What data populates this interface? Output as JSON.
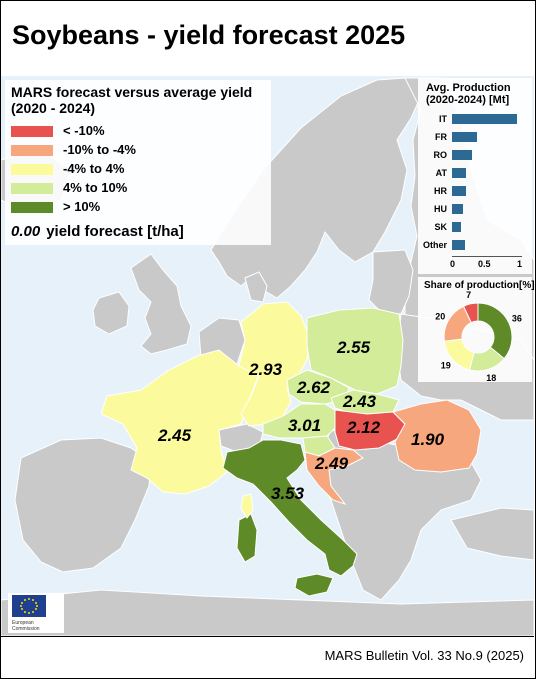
{
  "title": "Soybeans - yield forecast 2025",
  "footer": "MARS Bulletin Vol. 33 No.9 (2025)",
  "legend": {
    "title": "MARS forecast versus average yield (2020 - 2024)",
    "items": [
      {
        "label": "< -10%",
        "color": "#e9534f"
      },
      {
        "label": "-10% to -4%",
        "color": "#f7a77d"
      },
      {
        "label": "-4% to 4%",
        "color": "#fbfa9d"
      },
      {
        "label": "4% to 10%",
        "color": "#d2ec99"
      },
      {
        "label": "> 10%",
        "color": "#5f8a28"
      }
    ],
    "value_sample": "0.00",
    "value_label": "yield forecast [t/ha]"
  },
  "production_chart": {
    "title": "Avg. Production (2020-2024) [Mt]",
    "bar_color": "#2c6a93",
    "categories": [
      "IT",
      "FR",
      "RO",
      "AT",
      "HR",
      "HU",
      "SK",
      "Other"
    ],
    "values": [
      0.97,
      0.38,
      0.3,
      0.21,
      0.21,
      0.16,
      0.13,
      0.2
    ],
    "ticks": [
      "0",
      "0.5",
      "1"
    ]
  },
  "share_chart": {
    "title": "Share of production[%]",
    "segments": [
      {
        "value": 36,
        "color": "#5f8a28"
      },
      {
        "value": 18,
        "color": "#d2ec99"
      },
      {
        "value": 19,
        "color": "#fbfa9d"
      },
      {
        "value": 20,
        "color": "#f7a77d"
      },
      {
        "value": 7,
        "color": "#e9534f"
      }
    ]
  },
  "map_values": {
    "FR": "2.45",
    "DE": "2.93",
    "PL": "2.55",
    "CZ": "2.62",
    "SK": "2.43",
    "AT": "3.01",
    "HU": "2.12",
    "RO": "1.90",
    "HR": "2.49",
    "IT": "3.53"
  },
  "logo": {
    "line1": "European",
    "line2": "Commission"
  }
}
